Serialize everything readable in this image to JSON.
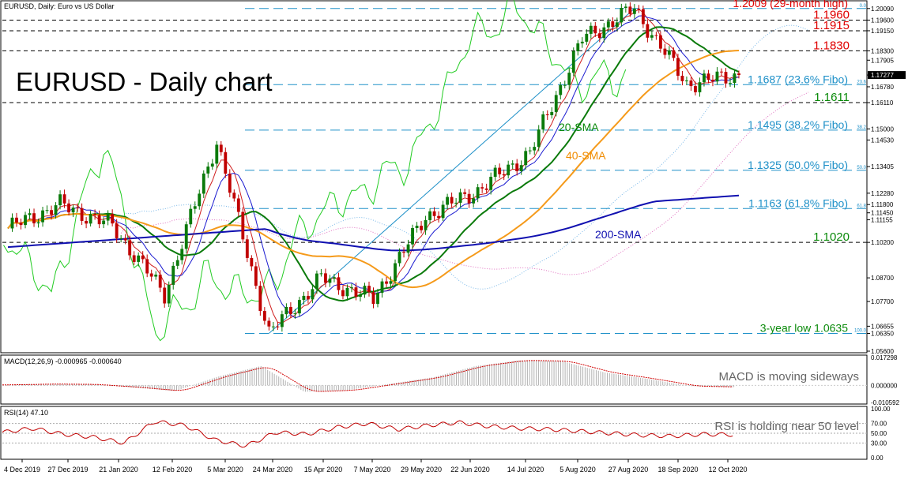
{
  "header": {
    "symbol_line": "EURUSD, Daily:  Euro vs US Dollar"
  },
  "chart_title": "EURUSD - Daily chart",
  "colors": {
    "fibo": "#1e90c8",
    "red": "#e00000",
    "green": "#0a8a0a",
    "orange": "#f08c00",
    "blue": "#0000c8",
    "sma20": "#0a7a0a",
    "sma40": "#f59a1a",
    "sma200": "#1010b0",
    "tenkan": "#d02020",
    "kijun": "#1a1ad0",
    "chikou": "#22cc22",
    "cloud_up": "#7ab8e8",
    "cloud_dn": "#e070c0",
    "bull": "#0a7a0a",
    "bear": "#c00000",
    "macd": "#b0b0b0",
    "signal": "#d00000"
  },
  "chart_data": [
    {
      "type": "candlestick",
      "name": "price",
      "ylim": [
        1.056,
        1.2035
      ],
      "x": [
        "4 Dec 2019",
        "27 Dec 2019",
        "21 Jan 2020",
        "12 Feb 2020",
        "5 Mar 2020",
        "24 Mar 2020",
        "15 Apr 2020",
        "7 May 2020",
        "29 May 2020",
        "22 Jun 2020",
        "14 Jul 2020",
        "5 Aug 2020",
        "27 Aug 2020",
        "18 Sep 2020",
        "12 Oct 2020"
      ],
      "key_prices": [
        {
          "x": "4 Dec 2019",
          "y": 1.1079
        },
        {
          "x": "27 Dec 2019",
          "y": 1.118
        },
        {
          "x": "21 Jan 2020",
          "y": 1.109
        },
        {
          "x": "12 Feb 2020",
          "y": 1.08
        },
        {
          "x": "5 Mar 2020",
          "y": 1.145
        },
        {
          "x": "24 Mar 2020",
          "y": 1.0635
        },
        {
          "x": "15 Apr 2020",
          "y": 1.087
        },
        {
          "x": "7 May 2020",
          "y": 1.078
        },
        {
          "x": "29 May 2020",
          "y": 1.113
        },
        {
          "x": "22 Jun 2020",
          "y": 1.124
        },
        {
          "x": "14 Jul 2020",
          "y": 1.14
        },
        {
          "x": "5 Aug 2020",
          "y": 1.188
        },
        {
          "x": "27 Aug 2020",
          "y": 1.2009
        },
        {
          "x": "18 Sep 2020",
          "y": 1.169
        },
        {
          "x": "12 Oct 2020",
          "y": 1.1728
        }
      ],
      "price_axis_labels": [
        "1.20090",
        "1.19600",
        "1.19150",
        "1.18300",
        "1.17905",
        "1.17277",
        "1.16780",
        "1.16110",
        "1.15000",
        "1.14530",
        "1.13405",
        "1.12280",
        "1.11800",
        "1.11450",
        "1.11155",
        "1.10200",
        "1.08700",
        "1.07700",
        "1.06655",
        "1.06350",
        "1.05600"
      ],
      "current_price": "1.17277",
      "annotations": [
        "20-SMA",
        "40-SMA",
        "200-SMA"
      ],
      "fibonacci": [
        {
          "price": 1.2009,
          "pct": "0.0",
          "label": "1.2009 (29-month high)"
        },
        {
          "price": 1.1687,
          "pct": "23.6",
          "label": "1.1687 (23.6% Fibo)"
        },
        {
          "price": 1.1495,
          "pct": "38.2",
          "label": "1.1495 (38.2% Fibo)"
        },
        {
          "price": 1.1325,
          "pct": "50.0",
          "label": "1.1325 (50.0% Fibo)"
        },
        {
          "price": 1.1163,
          "pct": "61.8",
          "label": "1.1163 (61.8% Fibo)"
        },
        {
          "price": 1.0635,
          "pct": "100.0",
          "label": "3-year low 1.0635"
        }
      ],
      "levels": [
        {
          "price": 1.196,
          "label": "1.1960"
        },
        {
          "price": 1.1915,
          "label": "1.1915"
        },
        {
          "price": 1.183,
          "label": "1.1830"
        },
        {
          "price": 1.1611,
          "label": "1.1611"
        },
        {
          "price": 1.102,
          "label": "1.1020"
        }
      ]
    },
    {
      "type": "histogram",
      "name": "macd",
      "label": "MACD(12,26,9) -0.000965 -0.000640",
      "note": "MACD is moving sideways",
      "axis_labels": [
        "0.017298",
        "0.000000",
        "-0.010592"
      ],
      "ylim": [
        -0.0106,
        0.0173
      ],
      "values": [
        0.0003,
        0.0008,
        0.0006,
        -0.0012,
        -0.0035,
        0.0055,
        0.012,
        -0.004,
        -0.003,
        0.001,
        0.005,
        0.012,
        0.0155,
        0.015,
        0.008,
        0.004,
        -0.0005,
        -0.001
      ]
    },
    {
      "type": "line",
      "name": "rsi",
      "label": "RSI(14) 47.10",
      "note": "RSI is holding near 50 level",
      "axis_labels": [
        "100.00",
        "70.00",
        "50.00",
        "30.00",
        "0.00"
      ],
      "ylim": [
        0,
        100
      ],
      "values": [
        52,
        60,
        48,
        42,
        30,
        74,
        66,
        36,
        24,
        52,
        48,
        62,
        70,
        58,
        66,
        72,
        64,
        60,
        58,
        54,
        50,
        46,
        44,
        48,
        47.1
      ]
    }
  ]
}
